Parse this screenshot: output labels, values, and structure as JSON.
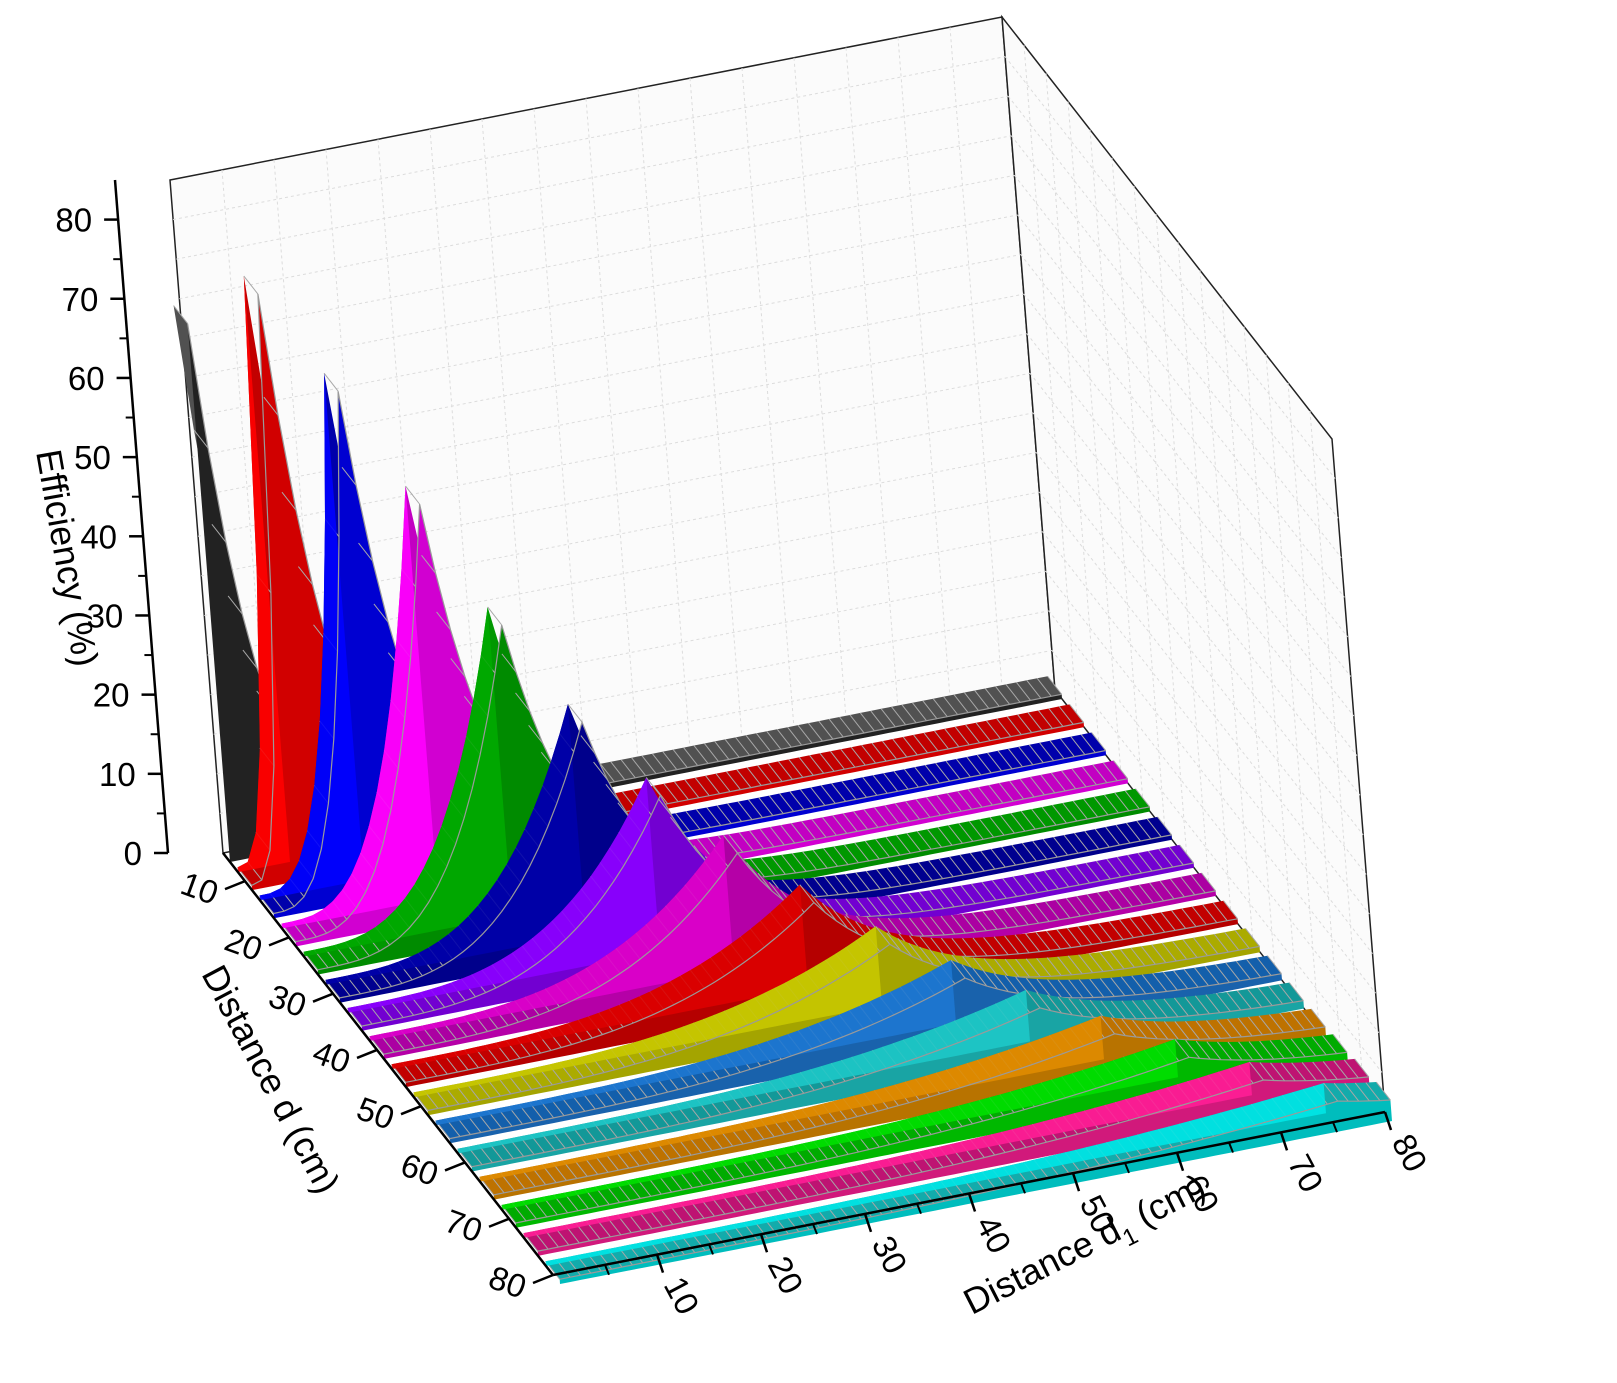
{
  "chart_data": {
    "type": "area",
    "subtype": "3d-waterfall",
    "title": "",
    "zlabel": "Efficiency (%)",
    "ylabel": "Distance d (cm)",
    "xlabel_main": "Distance d",
    "xlabel_sub": "1",
    "xlabel_unit": " (cm)",
    "zlim": [
      0,
      80
    ],
    "ylim": [
      5,
      80
    ],
    "xlim": [
      0,
      80
    ],
    "z_ticks": [
      "0",
      "10",
      "20",
      "30",
      "40",
      "50",
      "60",
      "70",
      "80"
    ],
    "y_ticks": [
      "10",
      "20",
      "30",
      "40",
      "50",
      "60",
      "70",
      "80"
    ],
    "x_ticks": [
      "10",
      "20",
      "30",
      "40",
      "50",
      "60",
      "70",
      "80"
    ],
    "grid": true,
    "series": [
      {
        "d": 5,
        "peak_d1": 0,
        "peak": 68,
        "color": "#2a2a2a"
      },
      {
        "d": 10,
        "peak_d1": 5,
        "peak": 74,
        "color": "#ff0000"
      },
      {
        "d": 15,
        "peak_d1": 10,
        "peak": 64,
        "color": "#0000ff"
      },
      {
        "d": 20,
        "peak_d1": 15,
        "peak": 52,
        "color": "#ff00ff"
      },
      {
        "d": 25,
        "peak_d1": 20,
        "peak": 39,
        "color": "#00aa00"
      },
      {
        "d": 30,
        "peak_d1": 25,
        "peak": 29,
        "color": "#0000aa"
      },
      {
        "d": 35,
        "peak_d1": 30,
        "peak": 22,
        "color": "#8b00ff"
      },
      {
        "d": 40,
        "peak_d1": 35,
        "peak": 17,
        "color": "#dd00cc"
      },
      {
        "d": 45,
        "peak_d1": 40,
        "peak": 13,
        "color": "#dd0000"
      },
      {
        "d": 50,
        "peak_d1": 45,
        "peak": 10,
        "color": "#c8c800"
      },
      {
        "d": 55,
        "peak_d1": 50,
        "peak": 8,
        "color": "#1e78d2"
      },
      {
        "d": 60,
        "peak_d1": 55,
        "peak": 6.5,
        "color": "#1ec8c8"
      },
      {
        "d": 65,
        "peak_d1": 60,
        "peak": 5.5,
        "color": "#e08c00"
      },
      {
        "d": 70,
        "peak_d1": 65,
        "peak": 4.8,
        "color": "#00e000"
      },
      {
        "d": 75,
        "peak_d1": 70,
        "peak": 4.2,
        "color": "#ff1e96"
      },
      {
        "d": 80,
        "peak_d1": 75,
        "peak": 3.8,
        "color": "#00e6e6"
      }
    ],
    "back_ribbons": [
      {
        "color": "#555555"
      },
      {
        "color": "#cc0000"
      },
      {
        "color": "#0000b4"
      },
      {
        "color": "#cc00cc"
      },
      {
        "color": "#00a000"
      },
      {
        "color": "#000096"
      },
      {
        "color": "#7800dc"
      },
      {
        "color": "#b400aa"
      },
      {
        "color": "#cc0000"
      },
      {
        "color": "#b4b400"
      },
      {
        "color": "#1464b4"
      },
      {
        "color": "#14a0a0"
      },
      {
        "color": "#c87800"
      },
      {
        "color": "#00b400"
      },
      {
        "color": "#c81478"
      },
      {
        "color": "#14b4b4"
      }
    ]
  }
}
